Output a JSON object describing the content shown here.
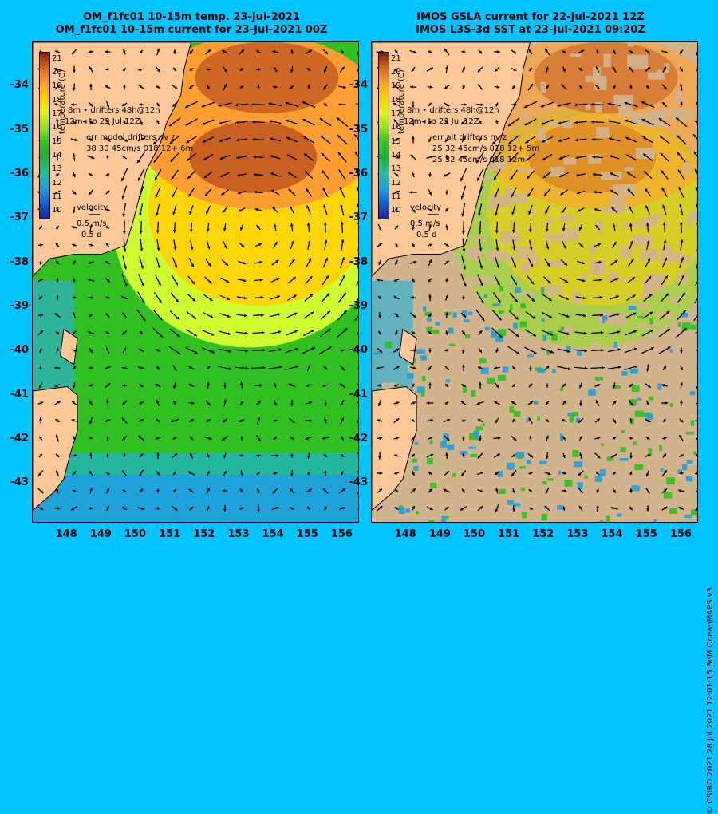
{
  "chart_data": [
    {
      "type": "heatmap",
      "title": "OM_f1fc01 10-15m temp. 23-Jul-2021",
      "subtitle": "OM_f1fc01 10-15m current for 23-Jul-2021 00Z",
      "x_ticks": [
        "148",
        "149",
        "150",
        "151",
        "152",
        "153",
        "154",
        "155",
        "156"
      ],
      "y_ticks": [
        "-34",
        "-35",
        "-36",
        "-37",
        "-38",
        "-39",
        "-40",
        "-41",
        "-42",
        "-43"
      ],
      "xlim": [
        147.0,
        156.5
      ],
      "ylim": [
        -43.9,
        -33.0
      ],
      "colorbar": {
        "label": "temperature (C)",
        "ticks": [
          "21",
          "20",
          "19",
          "18",
          "17",
          "16",
          "15",
          "14",
          "13",
          "12",
          "11",
          "10"
        ],
        "range": [
          9.5,
          21.5
        ]
      },
      "legend": {
        "drifters_48h": "8m  •  drifters 48h@12h",
        "drifters_to": "12m◂ to 23 Jul 12Z",
        "err_title": "err model drifters nv z",
        "err_values": "38 30 45cm/s 018 12+ 6m",
        "velocity_title": "velocity",
        "velocity_scale": "0.5 m/s",
        "velocity_time": "0.5 d"
      }
    },
    {
      "type": "heatmap",
      "title": "IMOS GSLA current for 22-Jul-2021 12Z",
      "subtitle": "IMOS L3S-3d SST at 23-Jul-2021 09:20Z",
      "x_ticks": [
        "148",
        "149",
        "150",
        "151",
        "152",
        "153",
        "154",
        "155",
        "156"
      ],
      "y_ticks": [
        "-34",
        "-35",
        "-36",
        "-37",
        "-38",
        "-39",
        "-40",
        "-41",
        "-42",
        "-43"
      ],
      "xlim": [
        147.0,
        156.5
      ],
      "ylim": [
        -43.9,
        -33.0
      ],
      "colorbar": {
        "label": "temperature (C)",
        "ticks": [
          "21",
          "20",
          "19",
          "18",
          "17",
          "16",
          "15",
          "14",
          "13",
          "12",
          "11",
          "10"
        ],
        "range": [
          9.5,
          21.5
        ]
      },
      "legend": {
        "drifters_48h": "8m  •  drifters 48h@12h",
        "drifters_to": "12m◂ to 23 Jul 12Z",
        "err_title": "err alt drifters nv z",
        "err_values": "25 32 45cm/s 018 12+ 5m",
        "err_values_2": "25 32 45cm/s 018 12m",
        "velocity_title": "velocity",
        "velocity_scale": "0.5 m/s",
        "velocity_time": "0.5 d"
      }
    }
  ],
  "credit": "© CSIRO 2021   28 Jul 2021 12:01:15 BoM OceanMAPS v3",
  "colors": {
    "background": "#00c4ff",
    "land": "#ffc896",
    "cloud": "#d2b48c"
  }
}
